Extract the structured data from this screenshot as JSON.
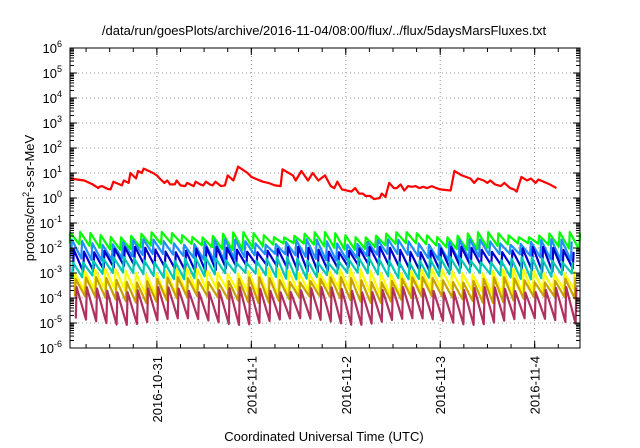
{
  "chart_data": {
    "type": "line",
    "title": "/data/run/goesPlots/archive/2016-11-04/08:00/flux/../flux/5daysMarsFluxes.txt",
    "xlabel": "Coordinated Universal Time (UTC)",
    "ylabel_main": "protons/cm",
    "ylabel_sup": "2",
    "ylabel_tail": "-s-sr-MeV",
    "yscale": "log",
    "ylim_exp": [
      -6,
      6
    ],
    "y_tick_exponents": [
      "-6",
      "-5",
      "-4",
      "-3",
      "-2",
      "-1",
      "0",
      "1",
      "2",
      "3",
      "4",
      "5",
      "6"
    ],
    "y_tick_base": "10",
    "xlim_days": [
      0,
      5.4
    ],
    "x_ticks": [
      {
        "label": "2016-10-31",
        "day": 0.92
      },
      {
        "label": "2016-11-1",
        "day": 1.92
      },
      {
        "label": "2016-11-2",
        "day": 2.92
      },
      {
        "label": "2016-11-3",
        "day": 3.92
      },
      {
        "label": "2016-11-4",
        "day": 4.92
      }
    ],
    "grid": true,
    "series": [
      {
        "color": "#ff0000",
        "points": [
          [
            0.0,
            6.0
          ],
          [
            0.15,
            5.0
          ],
          [
            0.24,
            3.5
          ],
          [
            0.3,
            2.5
          ],
          [
            0.31,
            2.8
          ],
          [
            0.34,
            3.0
          ],
          [
            0.4,
            2.3
          ],
          [
            0.43,
            2.2
          ],
          [
            0.46,
            4.5
          ],
          [
            0.55,
            3.2
          ],
          [
            0.57,
            5.0
          ],
          [
            0.62,
            4.0
          ],
          [
            0.64,
            10.0
          ],
          [
            0.7,
            6.0
          ],
          [
            0.72,
            12.0
          ],
          [
            0.76,
            10.0
          ],
          [
            0.78,
            15.0
          ],
          [
            0.88,
            10.0
          ],
          [
            0.92,
            8.0
          ],
          [
            0.95,
            6.0
          ],
          [
            1.0,
            4.0
          ],
          [
            1.03,
            5.0
          ],
          [
            1.06,
            3.5
          ],
          [
            1.11,
            3.5
          ],
          [
            1.13,
            5.0
          ],
          [
            1.17,
            3.2
          ],
          [
            1.22,
            3.0
          ],
          [
            1.24,
            4.0
          ],
          [
            1.31,
            3.0
          ],
          [
            1.33,
            4.5
          ],
          [
            1.38,
            3.5
          ],
          [
            1.41,
            3.2
          ],
          [
            1.44,
            4.5
          ],
          [
            1.48,
            3.5
          ],
          [
            1.51,
            3.2
          ],
          [
            1.54,
            4.5
          ],
          [
            1.6,
            3.0
          ],
          [
            1.64,
            3.2
          ],
          [
            1.67,
            8.0
          ],
          [
            1.73,
            5.0
          ],
          [
            1.78,
            18.0
          ],
          [
            1.88,
            10.0
          ],
          [
            1.92,
            7.0
          ],
          [
            2.04,
            4.5
          ],
          [
            2.1,
            4.0
          ],
          [
            2.17,
            3.2
          ],
          [
            2.23,
            3.0
          ],
          [
            2.25,
            14.0
          ],
          [
            2.36,
            8.0
          ],
          [
            2.39,
            5.0
          ],
          [
            2.45,
            12.0
          ],
          [
            2.52,
            5.0
          ],
          [
            2.57,
            10.0
          ],
          [
            2.63,
            5.0
          ],
          [
            2.7,
            8.0
          ],
          [
            2.76,
            3.0
          ],
          [
            2.8,
            2.5
          ],
          [
            2.83,
            4.5
          ],
          [
            2.88,
            2.2
          ],
          [
            2.98,
            1.8
          ],
          [
            3.02,
            2.5
          ],
          [
            3.06,
            1.5
          ],
          [
            3.1,
            1.5
          ],
          [
            3.13,
            1.2
          ],
          [
            3.18,
            1.2
          ],
          [
            3.22,
            0.9
          ],
          [
            3.28,
            1.0
          ],
          [
            3.3,
            1.5
          ],
          [
            3.34,
            1.1
          ],
          [
            3.38,
            4.0
          ],
          [
            3.43,
            2.5
          ],
          [
            3.46,
            2.5
          ],
          [
            3.5,
            3.5
          ],
          [
            3.54,
            2.0
          ],
          [
            3.58,
            3.0
          ],
          [
            3.62,
            2.8
          ],
          [
            3.66,
            3.0
          ],
          [
            3.7,
            2.5
          ],
          [
            3.74,
            2.8
          ],
          [
            3.78,
            2.5
          ],
          [
            3.83,
            3.0
          ],
          [
            3.88,
            2.5
          ],
          [
            3.92,
            2.2
          ],
          [
            4.03,
            2.0
          ],
          [
            4.07,
            12.0
          ],
          [
            4.15,
            8.0
          ],
          [
            4.24,
            6.0
          ],
          [
            4.28,
            4.0
          ],
          [
            4.32,
            6.0
          ],
          [
            4.38,
            5.0
          ],
          [
            4.42,
            4.0
          ],
          [
            4.45,
            5.0
          ],
          [
            4.5,
            3.5
          ],
          [
            4.56,
            3.0
          ],
          [
            4.6,
            4.0
          ],
          [
            4.66,
            2.5
          ],
          [
            4.7,
            2.2
          ],
          [
            4.73,
            1.8
          ],
          [
            4.78,
            7.0
          ],
          [
            4.84,
            5.0
          ],
          [
            4.88,
            6.0
          ],
          [
            4.93,
            4.0
          ],
          [
            4.96,
            5.5
          ],
          [
            5.08,
            3.5
          ],
          [
            5.15,
            2.5
          ]
        ]
      },
      {
        "color": "#00ff00",
        "period": 0.108,
        "max": 0.035,
        "min": 0.012,
        "phase": 0.0
      },
      {
        "color": "#1e90ff",
        "period": 0.108,
        "max": 0.018,
        "min": 0.0045,
        "phase": 0.02
      },
      {
        "color": "#0000cd",
        "period": 0.108,
        "max": 0.009,
        "min": 0.0016,
        "phase": 0.04
      },
      {
        "color": "#00c8b4",
        "period": 0.108,
        "max": 0.0035,
        "min": 0.0008,
        "phase": 0.03
      },
      {
        "color": "#ffff00",
        "period": 0.108,
        "max": 0.0012,
        "min": 0.00018,
        "phase": 0.05
      },
      {
        "color": "#c8a000",
        "period": 0.108,
        "max": 0.00055,
        "min": 9e-05,
        "phase": 0.06
      },
      {
        "color": "#b03060",
        "period": 0.108,
        "max": 0.00022,
        "min": 1.2e-05,
        "phase": 0.07
      }
    ]
  }
}
